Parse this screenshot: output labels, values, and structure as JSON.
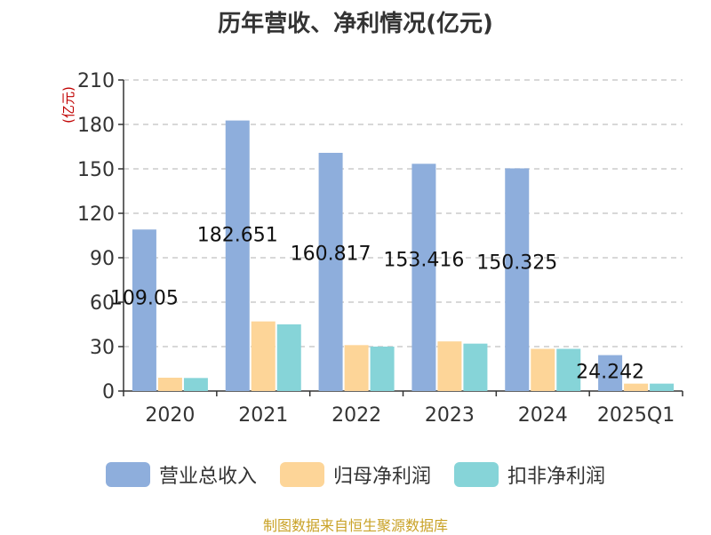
{
  "chart_data": {
    "type": "bar",
    "title": "历年营收、净利情况(亿元)",
    "ylabel": "(亿元)",
    "xlabel": "",
    "ylim": [
      0,
      210
    ],
    "yticks": [
      0,
      30,
      60,
      90,
      120,
      150,
      180,
      210
    ],
    "grid": true,
    "legend_position": "bottom",
    "categories": [
      "2020",
      "2021",
      "2022",
      "2023",
      "2024",
      "2025Q1"
    ],
    "series": [
      {
        "name": "营业总收入",
        "color": "#8eaedc",
        "values": [
          109.05,
          182.651,
          160.817,
          153.416,
          150.325,
          24.242
        ],
        "labels": [
          "109.05",
          "182.651",
          "160.817",
          "153.416",
          "150.325",
          "24.242"
        ]
      },
      {
        "name": "归母净利润",
        "color": "#fdd598",
        "values": [
          9,
          47,
          31,
          33.5,
          28.5,
          5
        ]
      },
      {
        "name": "扣非净利润",
        "color": "#86d4d8",
        "values": [
          8.8,
          45,
          30,
          32,
          28.5,
          5
        ]
      }
    ]
  },
  "source_note": "制图数据来自恒生聚源数据库"
}
